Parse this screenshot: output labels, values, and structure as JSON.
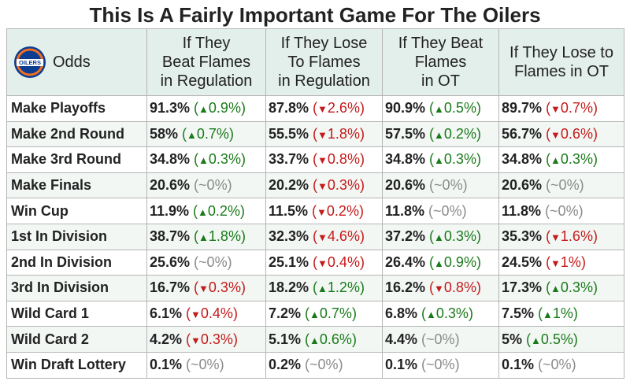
{
  "title": "This Is A Fairly Important Game For The Oilers",
  "header": {
    "odds_label": "Odds",
    "columns": [
      [
        "If They",
        "Beat Flames",
        "in Regulation"
      ],
      [
        "If They Lose",
        "To Flames",
        "in Regulation"
      ],
      [
        "If They Beat",
        "Flames",
        "in OT"
      ],
      [
        "If They Lose to",
        "Flames in OT"
      ]
    ]
  },
  "colors": {
    "up": "#1a7a1a",
    "down": "#c41a1a",
    "flat": "#8a8a8a",
    "header_bg": "#e3efea",
    "logo_blue": "#0b3d91",
    "logo_orange": "#f36f21"
  },
  "logo": {
    "icon": "oilers-logo-icon",
    "text": "OILERS"
  },
  "chart_data": {
    "type": "table",
    "title": "This Is A Fairly Important Game For The Oilers",
    "columns": [
      "If They Beat Flames in Regulation",
      "If They Lose To Flames in Regulation",
      "If They Beat Flames in OT",
      "If They Lose to Flames in OT"
    ],
    "rows": [
      {
        "label": "Make Playoffs",
        "cells": [
          {
            "value": "91.3%",
            "change": "0.9%",
            "dir": "up"
          },
          {
            "value": "87.8%",
            "change": "2.6%",
            "dir": "down"
          },
          {
            "value": "90.9%",
            "change": "0.5%",
            "dir": "up"
          },
          {
            "value": "89.7%",
            "change": "0.7%",
            "dir": "down"
          }
        ]
      },
      {
        "label": "Make 2nd Round",
        "cells": [
          {
            "value": "58%",
            "change": "0.7%",
            "dir": "up"
          },
          {
            "value": "55.5%",
            "change": "1.8%",
            "dir": "down"
          },
          {
            "value": "57.5%",
            "change": "0.2%",
            "dir": "up"
          },
          {
            "value": "56.7%",
            "change": "0.6%",
            "dir": "down"
          }
        ]
      },
      {
        "label": "Make 3rd Round",
        "cells": [
          {
            "value": "34.8%",
            "change": "0.3%",
            "dir": "up"
          },
          {
            "value": "33.7%",
            "change": "0.8%",
            "dir": "down"
          },
          {
            "value": "34.8%",
            "change": "0.3%",
            "dir": "up"
          },
          {
            "value": "34.8%",
            "change": "0.3%",
            "dir": "up"
          }
        ]
      },
      {
        "label": "Make Finals",
        "cells": [
          {
            "value": "20.6%",
            "change": "~0%",
            "dir": "flat"
          },
          {
            "value": "20.2%",
            "change": "0.3%",
            "dir": "down"
          },
          {
            "value": "20.6%",
            "change": "~0%",
            "dir": "flat"
          },
          {
            "value": "20.6%",
            "change": "~0%",
            "dir": "flat"
          }
        ]
      },
      {
        "label": "Win Cup",
        "cells": [
          {
            "value": "11.9%",
            "change": "0.2%",
            "dir": "up"
          },
          {
            "value": "11.5%",
            "change": "0.2%",
            "dir": "down"
          },
          {
            "value": "11.8%",
            "change": "~0%",
            "dir": "flat"
          },
          {
            "value": "11.8%",
            "change": "~0%",
            "dir": "flat"
          }
        ]
      },
      {
        "label": "1st In Division",
        "cells": [
          {
            "value": "38.7%",
            "change": "1.8%",
            "dir": "up"
          },
          {
            "value": "32.3%",
            "change": "4.6%",
            "dir": "down"
          },
          {
            "value": "37.2%",
            "change": "0.3%",
            "dir": "up"
          },
          {
            "value": "35.3%",
            "change": "1.6%",
            "dir": "down"
          }
        ]
      },
      {
        "label": "2nd In Division",
        "cells": [
          {
            "value": "25.6%",
            "change": "~0%",
            "dir": "flat"
          },
          {
            "value": "25.1%",
            "change": "0.4%",
            "dir": "down"
          },
          {
            "value": "26.4%",
            "change": "0.9%",
            "dir": "up"
          },
          {
            "value": "24.5%",
            "change": "1%",
            "dir": "down"
          }
        ]
      },
      {
        "label": "3rd In Division",
        "cells": [
          {
            "value": "16.7%",
            "change": "0.3%",
            "dir": "down"
          },
          {
            "value": "18.2%",
            "change": "1.2%",
            "dir": "up"
          },
          {
            "value": "16.2%",
            "change": "0.8%",
            "dir": "down"
          },
          {
            "value": "17.3%",
            "change": "0.3%",
            "dir": "up"
          }
        ]
      },
      {
        "label": "Wild Card 1",
        "cells": [
          {
            "value": "6.1%",
            "change": "0.4%",
            "dir": "down"
          },
          {
            "value": "7.2%",
            "change": "0.7%",
            "dir": "up"
          },
          {
            "value": "6.8%",
            "change": "0.3%",
            "dir": "up"
          },
          {
            "value": "7.5%",
            "change": "1%",
            "dir": "up"
          }
        ]
      },
      {
        "label": "Wild Card 2",
        "cells": [
          {
            "value": "4.2%",
            "change": "0.3%",
            "dir": "down"
          },
          {
            "value": "5.1%",
            "change": "0.6%",
            "dir": "up"
          },
          {
            "value": "4.4%",
            "change": "~0%",
            "dir": "flat"
          },
          {
            "value": "5%",
            "change": "0.5%",
            "dir": "up"
          }
        ]
      },
      {
        "label": "Win Draft Lottery",
        "cells": [
          {
            "value": "0.1%",
            "change": "~0%",
            "dir": "flat"
          },
          {
            "value": "0.2%",
            "change": "~0%",
            "dir": "flat"
          },
          {
            "value": "0.1%",
            "change": "~0%",
            "dir": "flat"
          },
          {
            "value": "0.1%",
            "change": "~0%",
            "dir": "flat"
          }
        ]
      }
    ]
  }
}
